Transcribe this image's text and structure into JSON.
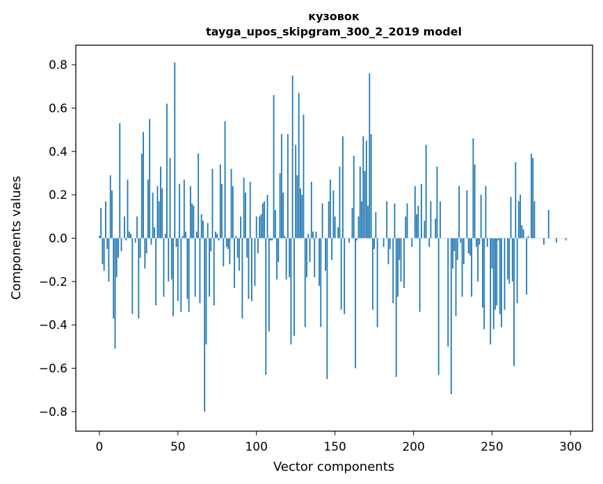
{
  "chart_data": {
    "type": "bar",
    "title": "кузовок",
    "subtitle": "tayga_upos_skipgram_300_2_2019 model",
    "xlabel": "Vector components",
    "ylabel": "Components values",
    "xlim": [
      -15,
      314
    ],
    "ylim": [
      -0.89,
      0.89
    ],
    "xticks": [
      0,
      50,
      100,
      150,
      200,
      250,
      300
    ],
    "yticks": [
      -0.8,
      -0.6,
      -0.4,
      -0.2,
      0.0,
      0.2,
      0.4,
      0.6,
      0.8
    ],
    "ytick_labels": [
      "−0.8",
      "−0.6",
      "−0.4",
      "−0.2",
      "0.0",
      "0.2",
      "0.4",
      "0.6",
      "0.8"
    ],
    "bar_color": "#1f77b4",
    "values": [
      0.01,
      0.14,
      -0.12,
      -0.15,
      0.17,
      -0.05,
      -0.2,
      0.29,
      0.22,
      -0.37,
      -0.51,
      -0.18,
      -0.09,
      0.53,
      -0.06,
      0.0,
      0.1,
      -0.01,
      0.27,
      0.03,
      0.02,
      -0.35,
      0.0,
      -0.02,
      0.1,
      -0.37,
      -0.09,
      0.39,
      0.49,
      -0.14,
      -0.07,
      0.27,
      0.55,
      -0.03,
      0.21,
      0.05,
      -0.31,
      0.24,
      0.17,
      0.33,
      0.23,
      -0.27,
      0.02,
      0.62,
      -0.2,
      0.37,
      -0.19,
      -0.36,
      0.81,
      -0.04,
      -0.29,
      0.25,
      -0.34,
      0.01,
      0.27,
      0.03,
      -0.28,
      -0.34,
      0.24,
      0.16,
      0.15,
      -0.27,
      0.03,
      0.39,
      -0.3,
      0.11,
      0.08,
      -0.8,
      -0.49,
      0.07,
      -0.27,
      -0.06,
      0.32,
      -0.31,
      0.03,
      0.02,
      -0.01,
      0.34,
      0.25,
      -0.13,
      0.54,
      -0.04,
      -0.05,
      -0.12,
      0.32,
      0.24,
      -0.23,
      0.01,
      -0.09,
      -0.15,
      0.1,
      -0.37,
      0.28,
      0.21,
      -0.09,
      -0.28,
      0.26,
      -0.29,
      0.0,
      -0.22,
      0.1,
      -0.07,
      0.1,
      0.11,
      0.16,
      0.17,
      -0.63,
      0.2,
      -0.43,
      -0.01,
      -0.01,
      0.66,
      0.13,
      -0.19,
      -0.11,
      0.3,
      0.48,
      0.21,
      0.01,
      -0.19,
      0.48,
      -0.18,
      -0.49,
      0.75,
      -0.45,
      0.43,
      0.29,
      0.67,
      0.23,
      0.2,
      0.57,
      -0.41,
      -0.18,
      0.02,
      -0.11,
      0.26,
      0.03,
      -0.18,
      0.03,
      0.0,
      -0.22,
      -0.41,
      0.16,
      0.0,
      -0.15,
      -0.65,
      0.17,
      0.27,
      -0.1,
      0.22,
      0.1,
      0.0,
      0.05,
      0.33,
      -0.33,
      0.47,
      -0.35,
      0.0,
      0.0,
      -0.02,
      0.0,
      0.14,
      0.38,
      -0.6,
      -0.01,
      0.1,
      0.33,
      0.17,
      0.47,
      0.31,
      0.45,
      0.15,
      0.76,
      0.48,
      -0.33,
      -0.05,
      0.12,
      -0.41,
      0.0,
      0.0,
      0.0,
      -0.04,
      0.0,
      0.17,
      -0.12,
      -0.05,
      0.0,
      -0.3,
      0.16,
      -0.64,
      -0.27,
      -0.1,
      -0.2,
      0.0,
      -0.23,
      0.1,
      0.16,
      0.0,
      0.0,
      -0.04,
      0.0,
      0.24,
      0.11,
      0.15,
      -0.34,
      0.25,
      0.0,
      0.08,
      0.43,
      0.0,
      -0.04,
      0.17,
      0.0,
      0.0,
      0.09,
      0.33,
      -0.63,
      0.17,
      0.0,
      0.0,
      0.0,
      0.0,
      -0.5,
      0.0,
      -0.72,
      -0.14,
      -0.06,
      -0.36,
      -0.1,
      0.24,
      -0.02,
      -0.27,
      -0.12,
      0.0,
      0.22,
      -0.07,
      -0.08,
      -0.27,
      0.46,
      0.34,
      -0.04,
      -0.2,
      -0.03,
      0.2,
      -0.32,
      -0.42,
      0.24,
      -0.04,
      0.0,
      -0.49,
      -0.14,
      -0.42,
      -0.33,
      -0.31,
      -0.01,
      -0.35,
      -0.41,
      0.0,
      -0.33,
      0.0,
      -0.19,
      -0.21,
      0.19,
      -0.2,
      -0.59,
      0.35,
      -0.3,
      0.17,
      0.2,
      0.06,
      0.04,
      0.0,
      -0.26,
      0.01,
      0.0,
      0.39,
      0.37,
      0.17,
      0.0,
      0.0,
      0.0,
      0.0,
      0.0,
      -0.03,
      0.0,
      0.0,
      0.13,
      0.0,
      0.0,
      0.0,
      0.0,
      -0.02,
      0.0,
      0.0,
      0.0,
      0.0,
      0.0,
      -0.01,
      0.0
    ]
  }
}
